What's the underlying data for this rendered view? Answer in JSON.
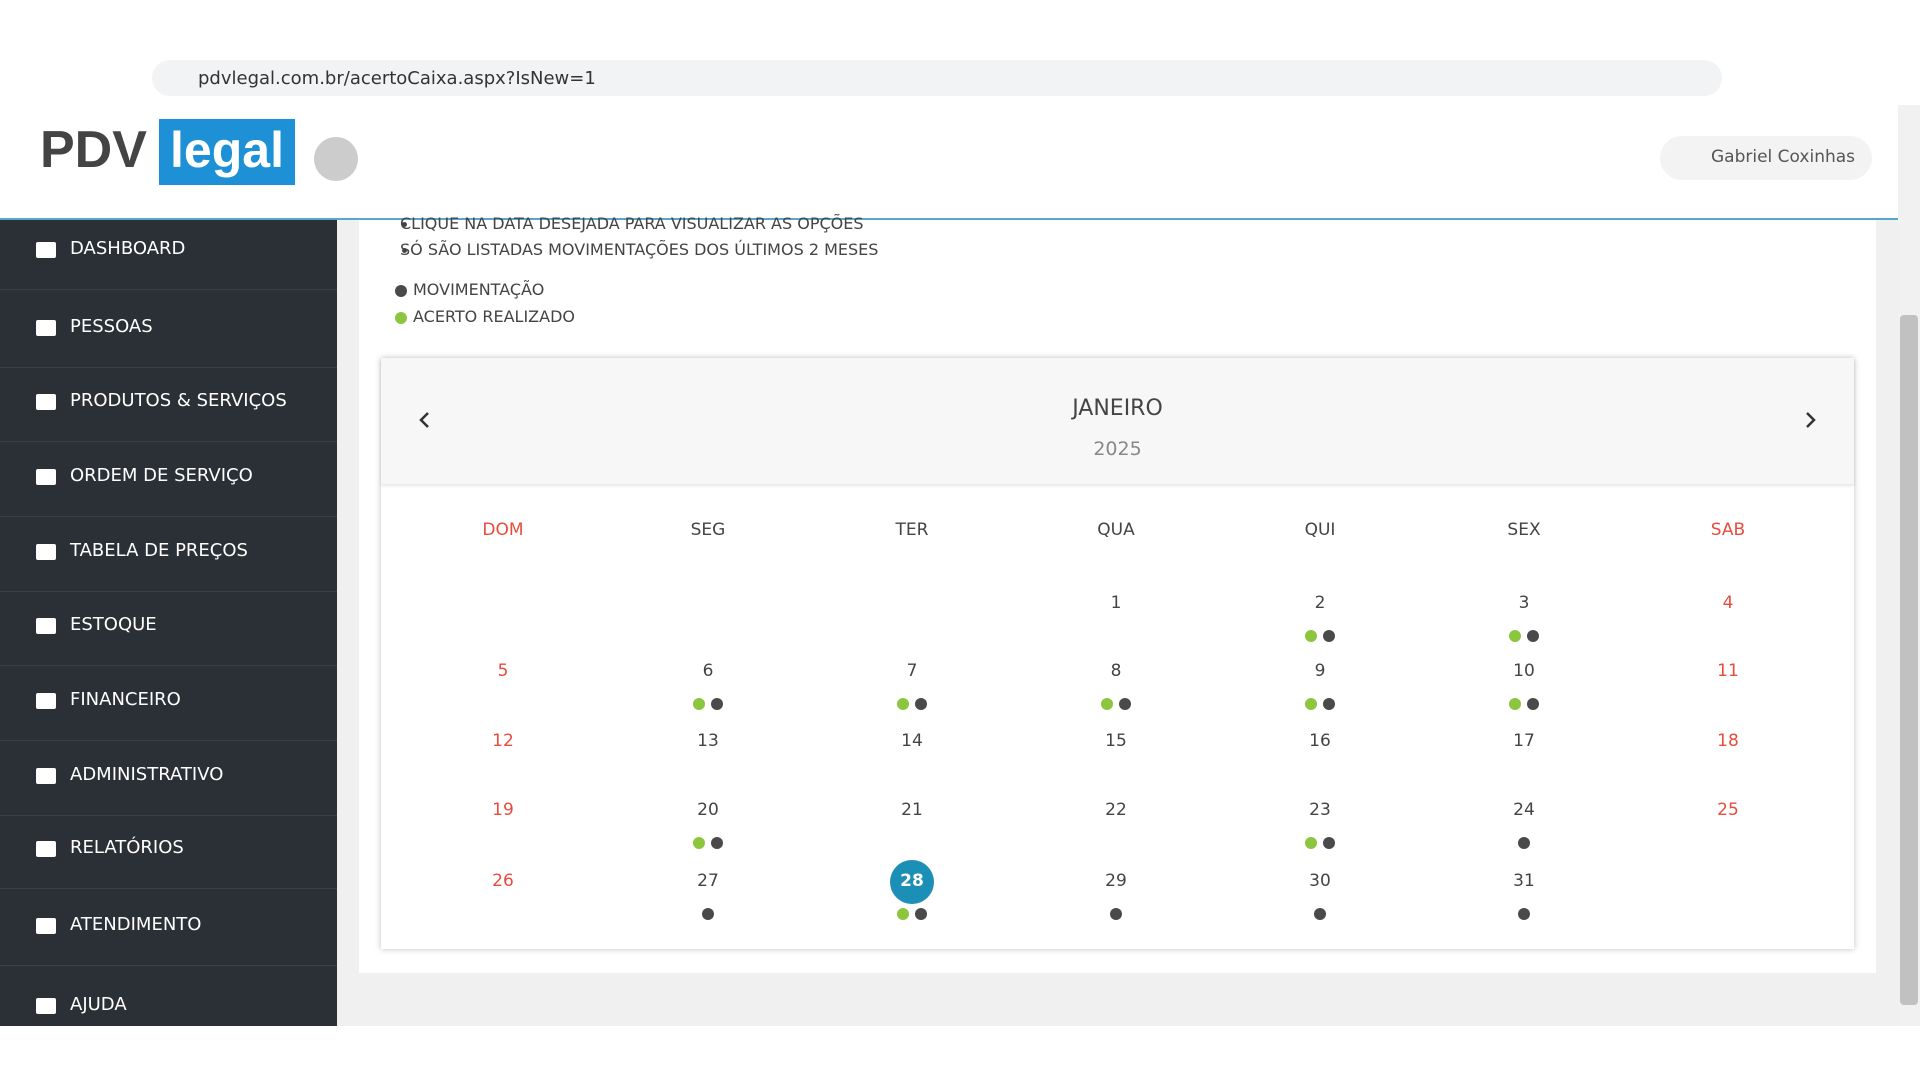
{
  "browser": {
    "url": "pdvlegal.com.br/acertoCaixa.aspx?IsNew=1"
  },
  "header": {
    "logo_left": "PDV",
    "logo_right": "legal",
    "user": "Gabriel Coxinhas"
  },
  "sidebar": [
    "DASHBOARD",
    "PESSOAS",
    "PRODUTOS & SERVIÇOS",
    "ORDEM DE SERVIÇO",
    "TABELA DE PREÇOS",
    "ESTOQUE",
    "FINANCEIRO",
    "ADMINISTRATIVO",
    "RELATÓRIOS",
    "ATENDIMENTO",
    "AJUDA"
  ],
  "notes": [
    "CLIQUE NA DATA DESEJADA PARA VISUALIZAR AS OPÇÕES",
    "SÓ SÃO LISTADAS MOVIMENTAÇÕES DOS ÚLTIMOS 2 MESES"
  ],
  "legend": [
    {
      "label": "MOVIMENTAÇÃO",
      "color": "#4a4a4a"
    },
    {
      "label": "ACERTO REALIZADO",
      "color": "#8cc63f"
    }
  ],
  "calendar": {
    "month": "JANEIRO",
    "year": "2025",
    "weekdays": [
      "DOM",
      "SEG",
      "TER",
      "QUA",
      "QUI",
      "SEX",
      "SAB"
    ],
    "weeks": [
      [
        null,
        null,
        null,
        {
          "day": "1"
        },
        {
          "day": "2",
          "acerto": true,
          "movimentacao": true
        },
        {
          "day": "3",
          "acerto": true,
          "movimentacao": true
        },
        {
          "day": "4"
        }
      ],
      [
        {
          "day": "5"
        },
        {
          "day": "6",
          "acerto": true,
          "movimentacao": true
        },
        {
          "day": "7",
          "acerto": true,
          "movimentacao": true
        },
        {
          "day": "8",
          "acerto": true,
          "movimentacao": true
        },
        {
          "day": "9",
          "acerto": true,
          "movimentacao": true
        },
        {
          "day": "10",
          "acerto": true,
          "movimentacao": true
        },
        {
          "day": "11"
        }
      ],
      [
        {
          "day": "12"
        },
        {
          "day": "13"
        },
        {
          "day": "14"
        },
        {
          "day": "15"
        },
        {
          "day": "16"
        },
        {
          "day": "17"
        },
        {
          "day": "18"
        }
      ],
      [
        {
          "day": "19"
        },
        {
          "day": "20",
          "acerto": true,
          "movimentacao": true
        },
        {
          "day": "21"
        },
        {
          "day": "22"
        },
        {
          "day": "23",
          "acerto": true,
          "movimentacao": true
        },
        {
          "day": "24",
          "movimentacao": true
        },
        {
          "day": "25"
        }
      ],
      [
        {
          "day": "26"
        },
        {
          "day": "27",
          "movimentacao": true
        },
        {
          "day": "28",
          "acerto": true,
          "movimentacao": true,
          "selected": true
        },
        {
          "day": "29",
          "movimentacao": true
        },
        {
          "day": "30",
          "movimentacao": true
        },
        {
          "day": "31",
          "movimentacao": true
        },
        null
      ]
    ]
  }
}
